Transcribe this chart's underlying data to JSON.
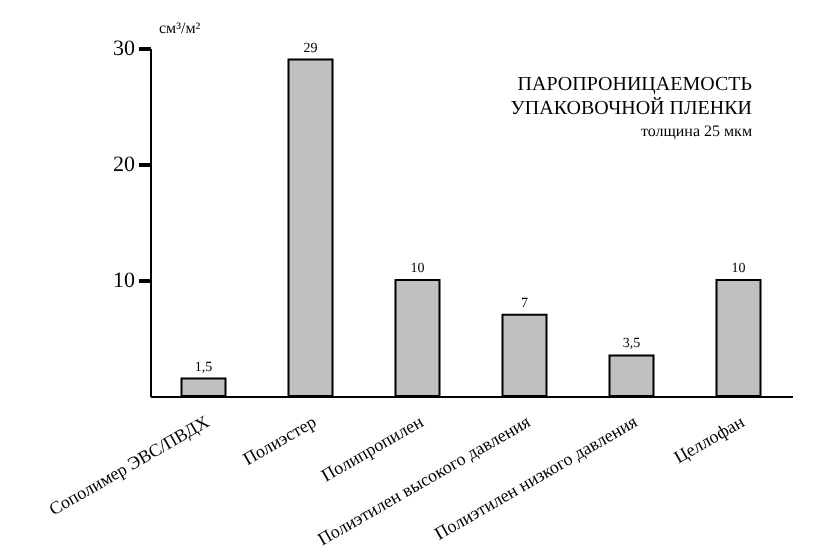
{
  "chart_data": {
    "type": "bar",
    "title": [
      "ПАРОПРОНИЦАЕМОСТЬ",
      "УПАКОВОЧНОЙ ПЛЕНКИ"
    ],
    "subtitle": "толщина 25 мкм",
    "ylabel": "см³/м²",
    "categories": [
      "Сополимер ЭВС/ПВДХ",
      "Полиэстер",
      "Полипропилен",
      "Полиэтилен высокого давления",
      "Полиэтилен низкого давления",
      "Целлофан"
    ],
    "values": [
      1.5,
      29,
      10,
      7,
      3.5,
      10
    ],
    "value_labels": [
      "1,5",
      "29",
      "10",
      "7",
      "3,5",
      "10"
    ],
    "color": "#c0c0c0",
    "ylim": [
      0,
      30
    ],
    "yticks": [
      10,
      20,
      30
    ],
    "grid": false
  }
}
